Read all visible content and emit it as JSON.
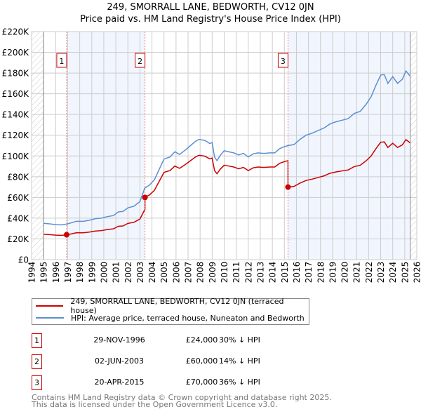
{
  "chart_data": {
    "type": "line",
    "title": "249, SMORRALL LANE, BEDWORTH, CV12 0JN",
    "subtitle": "Price paid vs. HM Land Registry's House Price Index (HPI)",
    "xlim": [
      1994,
      2026
    ],
    "ylim": [
      0,
      220000
    ],
    "x_ticks": [
      "1994",
      "1995",
      "1996",
      "1997",
      "1998",
      "1999",
      "2000",
      "2001",
      "2002",
      "2003",
      "2004",
      "2005",
      "2006",
      "2007",
      "2008",
      "2009",
      "2010",
      "2011",
      "2012",
      "2013",
      "2014",
      "2015",
      "2016",
      "2017",
      "2018",
      "2019",
      "2020",
      "2021",
      "2022",
      "2023",
      "2024",
      "2025",
      "2026"
    ],
    "y_ticks": [
      {
        "v": 0,
        "label": "£0"
      },
      {
        "v": 20000,
        "label": "£20K"
      },
      {
        "v": 40000,
        "label": "£40K"
      },
      {
        "v": 60000,
        "label": "£60K"
      },
      {
        "v": 80000,
        "label": "£80K"
      },
      {
        "v": 100000,
        "label": "£100K"
      },
      {
        "v": 120000,
        "label": "£120K"
      },
      {
        "v": 140000,
        "label": "£140K"
      },
      {
        "v": 160000,
        "label": "£160K"
      },
      {
        "v": 180000,
        "label": "£180K"
      },
      {
        "v": 200000,
        "label": "£200K"
      },
      {
        "v": 220000,
        "label": "£220K"
      }
    ],
    "grid": true,
    "data_range": [
      1995,
      2025.45
    ],
    "hpi_series": {
      "name": "HPI: Average price, terraced house, Nuneaton and Bedworth",
      "color": "#5b8fd4",
      "points": [
        [
          1995,
          35000
        ],
        [
          1995.5,
          34500
        ],
        [
          1996,
          33800
        ],
        [
          1996.5,
          33500
        ],
        [
          1996.9,
          34300
        ],
        [
          1997.3,
          35500
        ],
        [
          1997.7,
          37000
        ],
        [
          1998.3,
          37000
        ],
        [
          1998.8,
          38000
        ],
        [
          1999.3,
          39500
        ],
        [
          1999.8,
          40000
        ],
        [
          2000.3,
          41500
        ],
        [
          2000.8,
          42500
        ],
        [
          2001.2,
          46000
        ],
        [
          2001.6,
          46500
        ],
        [
          2002,
          50000
        ],
        [
          2002.5,
          51500
        ],
        [
          2003,
          56000
        ],
        [
          2003.4,
          69000
        ],
        [
          2003.8,
          72000
        ],
        [
          2004.2,
          77000
        ],
        [
          2004.6,
          87000
        ],
        [
          2005,
          97000
        ],
        [
          2005.5,
          99000
        ],
        [
          2005.9,
          104000
        ],
        [
          2006.3,
          101500
        ],
        [
          2006.8,
          106000
        ],
        [
          2007.2,
          110000
        ],
        [
          2007.6,
          114000
        ],
        [
          2007.9,
          116000
        ],
        [
          2008.4,
          115000
        ],
        [
          2008.8,
          112000
        ],
        [
          2009,
          113000
        ],
        [
          2009.2,
          99000
        ],
        [
          2009.4,
          95500
        ],
        [
          2009.7,
          101000
        ],
        [
          2010,
          105000
        ],
        [
          2010.4,
          104000
        ],
        [
          2010.8,
          103000
        ],
        [
          2011.2,
          101000
        ],
        [
          2011.6,
          102500
        ],
        [
          2012,
          99000
        ],
        [
          2012.4,
          102000
        ],
        [
          2012.8,
          103000
        ],
        [
          2013.3,
          102500
        ],
        [
          2013.8,
          103000
        ],
        [
          2014.2,
          103000
        ],
        [
          2014.6,
          107000
        ],
        [
          2015,
          109000
        ],
        [
          2015.3,
          110000
        ],
        [
          2015.8,
          111000
        ],
        [
          2016.3,
          116000
        ],
        [
          2016.8,
          120000
        ],
        [
          2017.3,
          122000
        ],
        [
          2017.8,
          124500
        ],
        [
          2018.3,
          127000
        ],
        [
          2018.8,
          131000
        ],
        [
          2019.3,
          133000
        ],
        [
          2019.8,
          134500
        ],
        [
          2020.3,
          136000
        ],
        [
          2020.8,
          141000
        ],
        [
          2021.3,
          143000
        ],
        [
          2021.8,
          150000
        ],
        [
          2022.2,
          157000
        ],
        [
          2022.6,
          168000
        ],
        [
          2023,
          178000
        ],
        [
          2023.3,
          178500
        ],
        [
          2023.6,
          170000
        ],
        [
          2024,
          176500
        ],
        [
          2024.4,
          170000
        ],
        [
          2024.8,
          174000
        ],
        [
          2025.1,
          182000
        ],
        [
          2025.45,
          177000
        ]
      ]
    },
    "property_series": {
      "name": "249, SMORRALL LANE, BEDWORTH, CV12 0JN (terraced house)",
      "color": "#cc0000"
    },
    "sales": [
      {
        "id": "1",
        "x": 1996.91,
        "date": "29-NOV-1996",
        "price": 24000,
        "price_label": "£24,000",
        "hpi_label": "30% ↓ HPI"
      },
      {
        "id": "2",
        "x": 2003.42,
        "date": "02-JUN-2003",
        "price": 60000,
        "price_label": "£60,000",
        "hpi_label": "14% ↓ HPI"
      },
      {
        "id": "3",
        "x": 2015.3,
        "date": "20-APR-2015",
        "price": 70000,
        "price_label": "£70,000",
        "hpi_label": "36% ↓ HPI"
      }
    ],
    "legend_position": "below"
  },
  "footer": {
    "line1": "Contains HM Land Registry data © Crown copyright and database right 2025.",
    "line2": "This data is licensed under the Open Government Licence v3.0."
  }
}
